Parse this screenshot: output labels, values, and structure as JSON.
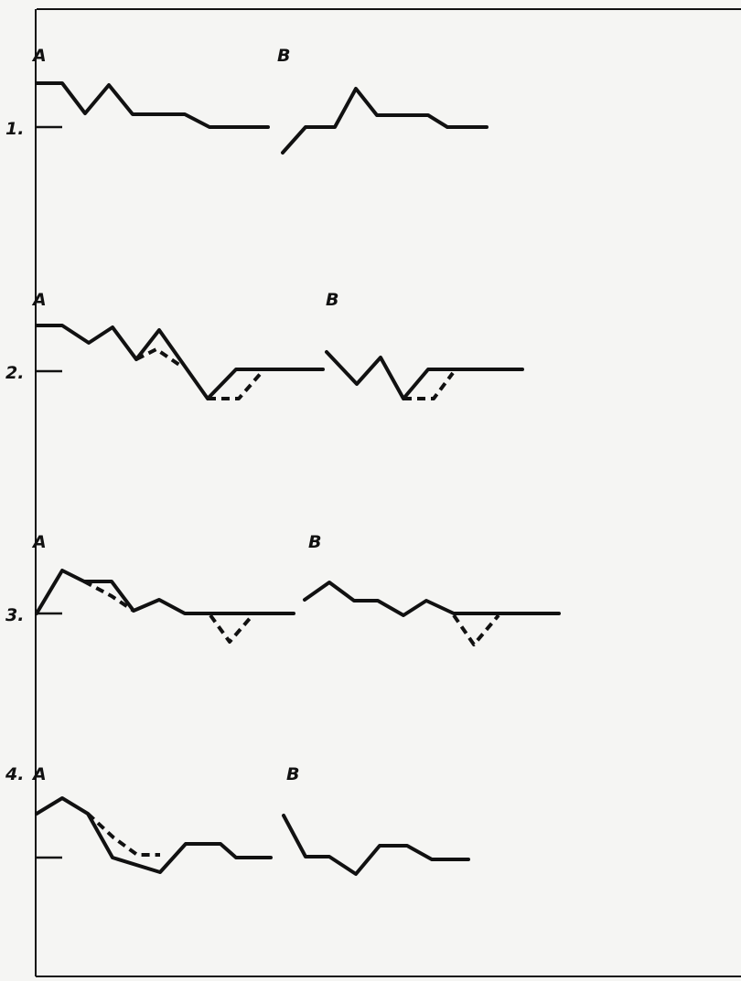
{
  "rows": [
    {
      "number": "1.",
      "panel_a_label": "A",
      "panel_b_label": "B"
    },
    {
      "number": "2.",
      "panel_a_label": "A",
      "panel_b_label": "B"
    },
    {
      "number": "3.",
      "panel_a_label": "A",
      "panel_b_label": "B"
    },
    {
      "number": "4.",
      "panel_a_label": "A",
      "panel_b_label": "B"
    }
  ]
}
